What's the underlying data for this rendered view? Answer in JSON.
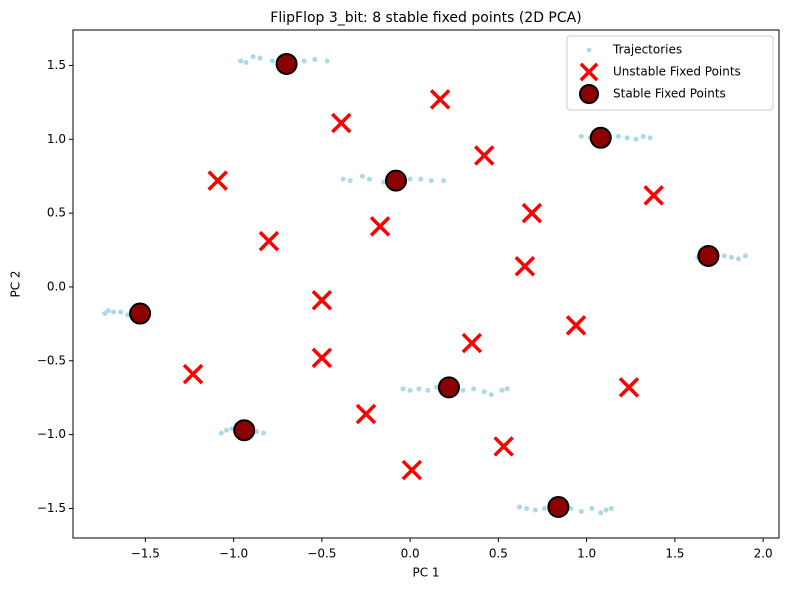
{
  "chart_data": {
    "type": "scatter",
    "title": "FlipFlop 3_bit: 8 stable fixed points (2D PCA)",
    "x_label": "PC 1",
    "y_label": "PC 2",
    "xlim": [
      -1.91,
      2.09
    ],
    "ylim": [
      -1.7,
      1.74
    ],
    "xticks": [
      {
        "value": -1.5,
        "label": "−1.5"
      },
      {
        "value": -1.0,
        "label": "−1.0"
      },
      {
        "value": -0.5,
        "label": "−0.5"
      },
      {
        "value": 0,
        "label": "0.0"
      },
      0.5,
      {
        "value": 1.0,
        "label": "1.0"
      },
      1.5,
      {
        "value": 2.0,
        "label": "2.0"
      }
    ],
    "yticks": [
      {
        "value": -1.5,
        "label": "−1.5"
      },
      {
        "value": -1.0,
        "label": "−1.0"
      },
      {
        "value": -0.5,
        "label": "−0.5"
      },
      {
        "value": 0,
        "label": "0.0"
      },
      0.5,
      {
        "value": 1.0,
        "label": "1.0"
      },
      1.5
    ],
    "legend": "upper right",
    "series": [
      {
        "name": "Trajectories",
        "color": "#add8e6",
        "marker": "dot",
        "x": [
          -0.96,
          -0.93,
          -0.89,
          -0.85,
          -0.78,
          -0.72,
          -0.66,
          -0.6,
          -0.54,
          -0.47,
          -0.38,
          -0.34,
          -0.27,
          -0.23,
          -0.15,
          -0.05,
          0.0,
          0.06,
          0.12,
          0.19,
          0.97,
          1.02,
          1.05,
          1.13,
          1.18,
          1.23,
          1.28,
          1.32,
          1.36,
          1.63,
          1.66,
          1.74,
          1.78,
          1.82,
          1.86,
          1.9,
          -1.73,
          -1.71,
          -1.68,
          -1.64,
          -1.6,
          -1.57,
          -1.07,
          -1.04,
          -1.01,
          -0.98,
          -0.92,
          -0.87,
          -0.83,
          -0.04,
          0.0,
          0.05,
          0.1,
          0.15,
          0.3,
          0.36,
          0.42,
          0.46,
          0.52,
          0.55,
          0.62,
          0.66,
          0.71,
          0.76,
          0.91,
          0.97,
          1.03,
          1.08,
          1.11,
          1.14
        ],
        "y": [
          1.53,
          1.52,
          1.56,
          1.55,
          1.53,
          1.52,
          1.54,
          1.53,
          1.54,
          1.53,
          0.73,
          0.72,
          0.75,
          0.73,
          0.71,
          0.72,
          0.73,
          0.73,
          0.72,
          0.72,
          1.02,
          1.01,
          1.03,
          1.01,
          1.02,
          1.01,
          1.0,
          1.02,
          1.01,
          0.2,
          0.21,
          0.22,
          0.21,
          0.2,
          0.19,
          0.21,
          -0.18,
          -0.16,
          -0.17,
          -0.17,
          -0.19,
          -0.18,
          -0.99,
          -0.97,
          -0.96,
          -0.98,
          -0.99,
          -0.98,
          -0.99,
          -0.69,
          -0.7,
          -0.69,
          -0.7,
          -0.68,
          -0.7,
          -0.69,
          -0.71,
          -0.73,
          -0.7,
          -0.69,
          -1.49,
          -1.5,
          -1.51,
          -1.5,
          -1.5,
          -1.52,
          -1.5,
          -1.53,
          -1.51,
          -1.5
        ]
      },
      {
        "name": "Unstable Fixed Points",
        "color": "#ff0000",
        "marker": "x",
        "x": [
          0.17,
          -0.39,
          0.42,
          -1.09,
          1.38,
          0.69,
          -0.17,
          -0.8,
          0.65,
          -0.5,
          0.94,
          0.35,
          -0.5,
          -1.23,
          1.24,
          -0.25,
          0.53,
          0.01
        ],
        "y": [
          1.27,
          1.11,
          0.89,
          0.72,
          0.62,
          0.5,
          0.41,
          0.31,
          0.14,
          -0.09,
          -0.26,
          -0.38,
          -0.48,
          -0.59,
          -0.68,
          -0.86,
          -1.08,
          -1.24
        ]
      },
      {
        "name": "Stable Fixed Points",
        "color": "#8b0000",
        "edgecolor": "#000000",
        "marker": "o",
        "x": [
          -0.7,
          -0.08,
          1.08,
          1.69,
          -1.53,
          -0.94,
          0.22,
          0.84
        ],
        "y": [
          1.51,
          0.72,
          1.01,
          0.21,
          -0.18,
          -0.97,
          -0.68,
          -1.49
        ]
      }
    ]
  }
}
